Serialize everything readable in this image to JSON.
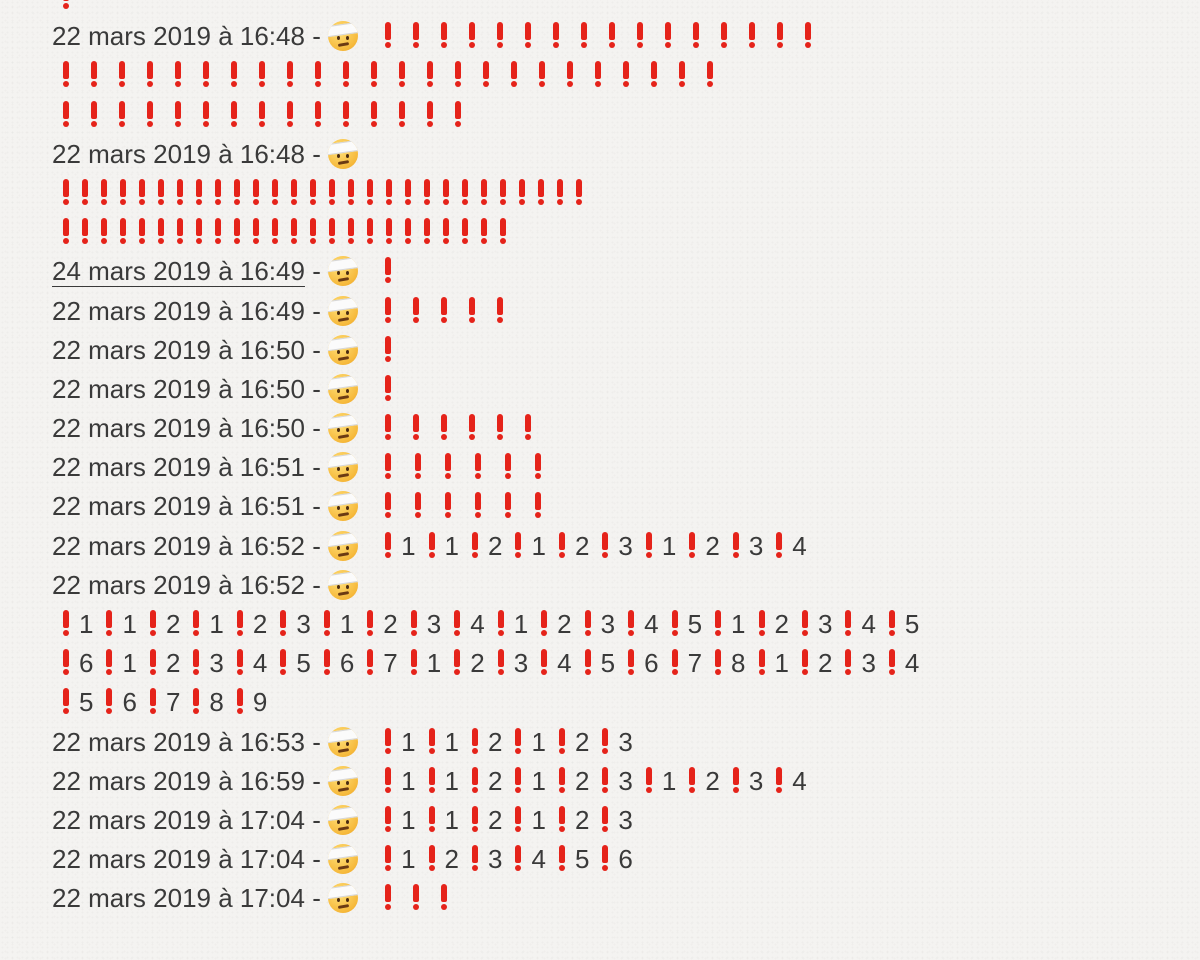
{
  "emoji_icon": "face-with-head-bandage-icon",
  "accent_color": "#e5231a",
  "separator": " - ",
  "entries": [
    {
      "stamp": "",
      "items": [
        [
          "",
          1,
          0
        ]
      ]
    },
    {
      "stamp": "22 mars 2019 à 16:48",
      "items": [
        [
          "",
          16,
          20
        ]
      ]
    },
    {
      "stamp": "",
      "items": [
        [
          "",
          24,
          20
        ]
      ]
    },
    {
      "stamp": "",
      "items": [
        [
          "",
          15,
          20
        ]
      ]
    },
    {
      "stamp": "22 mars 2019 à 16:48",
      "items": []
    },
    {
      "stamp": "",
      "items": [
        [
          "",
          28,
          11
        ]
      ]
    },
    {
      "stamp": "",
      "items": [
        [
          "",
          24,
          11
        ]
      ]
    },
    {
      "stamp": "24 mars 2019 à 16:49",
      "underlined": true,
      "items": [
        [
          "",
          1,
          0
        ]
      ]
    },
    {
      "stamp": "22 mars 2019 à 16:49",
      "items": [
        [
          "",
          5,
          20
        ]
      ]
    },
    {
      "stamp": "22 mars 2019 à 16:50",
      "items": [
        [
          "",
          1,
          0
        ]
      ]
    },
    {
      "stamp": "22 mars 2019 à 16:50",
      "items": [
        [
          "",
          1,
          0
        ]
      ]
    },
    {
      "stamp": "22 mars 2019 à 16:50",
      "items": [
        [
          "",
          6,
          20
        ]
      ]
    },
    {
      "stamp": "22 mars 2019 à 16:51",
      "items": [
        [
          "",
          6,
          22
        ]
      ]
    },
    {
      "stamp": "22 mars 2019 à 16:51",
      "items": [
        [
          "",
          6,
          22
        ]
      ]
    },
    {
      "stamp": "22 mars 2019 à 16:52",
      "items": [
        [
          "1",
          1,
          0
        ],
        [
          "1",
          1,
          0
        ],
        [
          "2",
          1,
          0
        ],
        [
          "1",
          1,
          0
        ],
        [
          "2",
          1,
          0
        ],
        [
          "3",
          1,
          0
        ],
        [
          "1",
          1,
          0
        ],
        [
          "2",
          1,
          0
        ],
        [
          "3",
          1,
          0
        ],
        [
          "4",
          1,
          0
        ]
      ]
    },
    {
      "stamp": "22 mars 2019 à 16:52",
      "items": []
    },
    {
      "stamp": "",
      "items": [
        [
          "1",
          1,
          0
        ],
        [
          "1",
          1,
          0
        ],
        [
          "2",
          1,
          0
        ],
        [
          "1",
          1,
          0
        ],
        [
          "2",
          1,
          0
        ],
        [
          "3",
          1,
          0
        ],
        [
          "1",
          1,
          0
        ],
        [
          "2",
          1,
          0
        ],
        [
          "3",
          1,
          0
        ],
        [
          "4",
          1,
          0
        ],
        [
          "1",
          1,
          0
        ],
        [
          "2",
          1,
          0
        ],
        [
          "3",
          1,
          0
        ],
        [
          "4",
          1,
          0
        ],
        [
          "5",
          1,
          0
        ],
        [
          "1",
          1,
          0
        ],
        [
          "2",
          1,
          0
        ],
        [
          "3",
          1,
          0
        ],
        [
          "4",
          1,
          0
        ],
        [
          "5",
          1,
          0
        ]
      ]
    },
    {
      "stamp": "",
      "items": [
        [
          "6",
          1,
          0
        ],
        [
          "1",
          1,
          0
        ],
        [
          "2",
          1,
          0
        ],
        [
          "3",
          1,
          0
        ],
        [
          "4",
          1,
          0
        ],
        [
          "5",
          1,
          0
        ],
        [
          "6",
          1,
          0
        ],
        [
          "7",
          1,
          0
        ],
        [
          "1",
          1,
          0
        ],
        [
          "2",
          1,
          0
        ],
        [
          "3",
          1,
          0
        ],
        [
          "4",
          1,
          0
        ],
        [
          "5",
          1,
          0
        ],
        [
          "6",
          1,
          0
        ],
        [
          "7",
          1,
          0
        ],
        [
          "8",
          1,
          0
        ],
        [
          "1",
          1,
          0
        ],
        [
          "2",
          1,
          0
        ],
        [
          "3",
          1,
          0
        ],
        [
          "4",
          1,
          0
        ]
      ]
    },
    {
      "stamp": "",
      "items": [
        [
          "5",
          1,
          0
        ],
        [
          "6",
          1,
          0
        ],
        [
          "7",
          1,
          0
        ],
        [
          "8",
          1,
          0
        ],
        [
          "9",
          1,
          0
        ]
      ]
    },
    {
      "stamp": "22 mars 2019 à 16:53",
      "items": [
        [
          "1",
          1,
          0
        ],
        [
          "1",
          1,
          0
        ],
        [
          "2",
          1,
          0
        ],
        [
          "1",
          1,
          0
        ],
        [
          "2",
          1,
          0
        ],
        [
          "3",
          1,
          0
        ]
      ]
    },
    {
      "stamp": "22 mars 2019 à 16:59",
      "items": [
        [
          "1",
          1,
          0
        ],
        [
          "1",
          1,
          0
        ],
        [
          "2",
          1,
          0
        ],
        [
          "1",
          1,
          0
        ],
        [
          "2",
          1,
          0
        ],
        [
          "3",
          1,
          0
        ],
        [
          "1",
          1,
          0
        ],
        [
          "2",
          1,
          0
        ],
        [
          "3",
          1,
          0
        ],
        [
          "4",
          1,
          0
        ]
      ]
    },
    {
      "stamp": "22 mars 2019 à 17:04",
      "items": [
        [
          "1",
          1,
          0
        ],
        [
          "1",
          1,
          0
        ],
        [
          "2",
          1,
          0
        ],
        [
          "1",
          1,
          0
        ],
        [
          "2",
          1,
          0
        ],
        [
          "3",
          1,
          0
        ]
      ]
    },
    {
      "stamp": "22 mars 2019 à 17:04",
      "items": [
        [
          "1",
          1,
          0
        ],
        [
          "2",
          1,
          0
        ],
        [
          "3",
          1,
          0
        ],
        [
          "4",
          1,
          0
        ],
        [
          "5",
          1,
          0
        ],
        [
          "6",
          1,
          0
        ]
      ]
    },
    {
      "stamp": "22 mars 2019 à 17:04",
      "items": [
        [
          "",
          3,
          20
        ]
      ]
    }
  ]
}
